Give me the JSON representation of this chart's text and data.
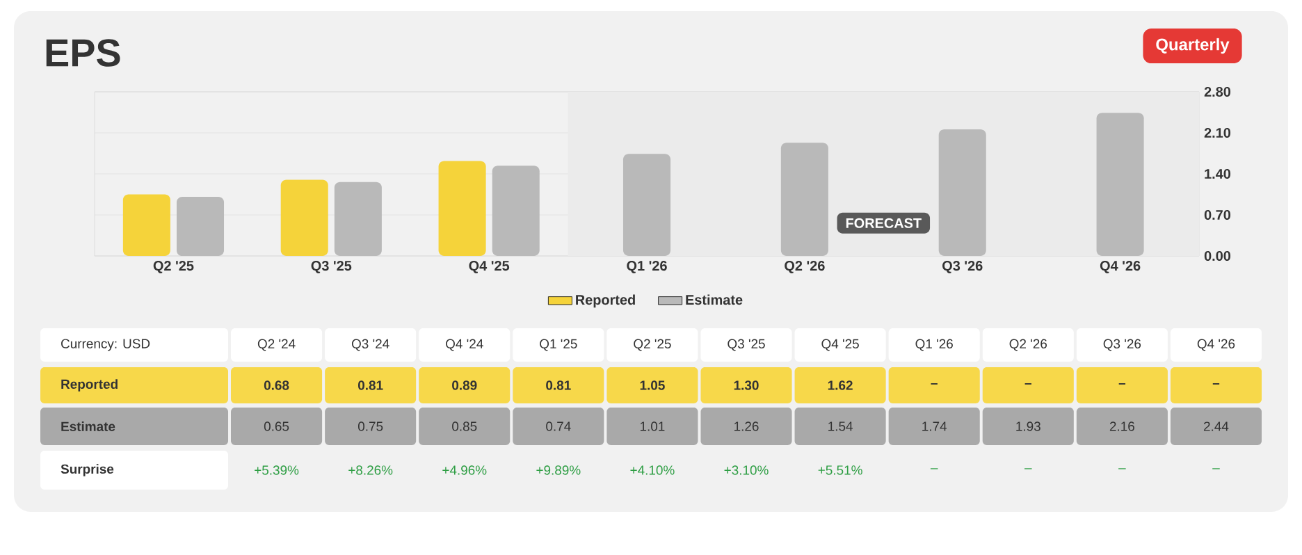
{
  "chart_data": [
    {
      "type": "bar",
      "title": "EPS",
      "categories": [
        "Q2 '25",
        "Q3 '25",
        "Q4 '25",
        "Q1 '26",
        "Q2 '26",
        "Q3 '26",
        "Q4 '26"
      ],
      "series": [
        {
          "name": "Reported",
          "color": "#f5d33a",
          "values": [
            1.05,
            1.3,
            1.62,
            null,
            null,
            null,
            null
          ]
        },
        {
          "name": "Estimate",
          "color": "#b9b9b9",
          "values": [
            1.01,
            1.26,
            1.54,
            1.74,
            1.93,
            2.16,
            2.44
          ]
        }
      ],
      "ylim": [
        0,
        2.8
      ],
      "yticks": [
        {
          "value": 0,
          "label": "0.00"
        },
        {
          "value": 0.7,
          "label": "0.70"
        },
        {
          "value": 1.4,
          "label": "1.40"
        },
        {
          "value": 2.1,
          "label": "2.10"
        },
        {
          "value": 2.8,
          "label": "2.80"
        }
      ],
      "grid": "y",
      "legend": "bottom",
      "bands": [
        {
          "axis": "x",
          "from": "Q1 '26",
          "to": "Q4 '26",
          "label": "FORECAST",
          "color": "#ebebeb"
        }
      ],
      "annotations": [
        "Quarterly"
      ]
    },
    {
      "type": "other",
      "categories": [
        "Q2 '24",
        "Q3 '24",
        "Q4 '24",
        "Q1 '25",
        "Q2 '25",
        "Q3 '25",
        "Q4 '25",
        "Q1 '26",
        "Q2 '26",
        "Q3 '26",
        "Q4 '26"
      ],
      "y_categories": [
        "Reported",
        "Estimate",
        "Surprise"
      ],
      "cell_labels": [
        [
          "0.68",
          "0.81",
          "0.89",
          "0.81",
          "1.05",
          "1.30",
          "1.62",
          "–",
          "–",
          "–",
          "–"
        ],
        [
          "0.65",
          "0.75",
          "0.85",
          "0.74",
          "1.01",
          "1.26",
          "1.54",
          "1.74",
          "1.93",
          "2.16",
          "2.44"
        ],
        [
          "+5.39%",
          "+8.26%",
          "+4.96%",
          "+9.89%",
          "+4.10%",
          "+3.10%",
          "+5.51%",
          "–",
          "–",
          "–",
          "–"
        ]
      ],
      "annotations": [
        "Currency: USD"
      ]
    }
  ]
}
